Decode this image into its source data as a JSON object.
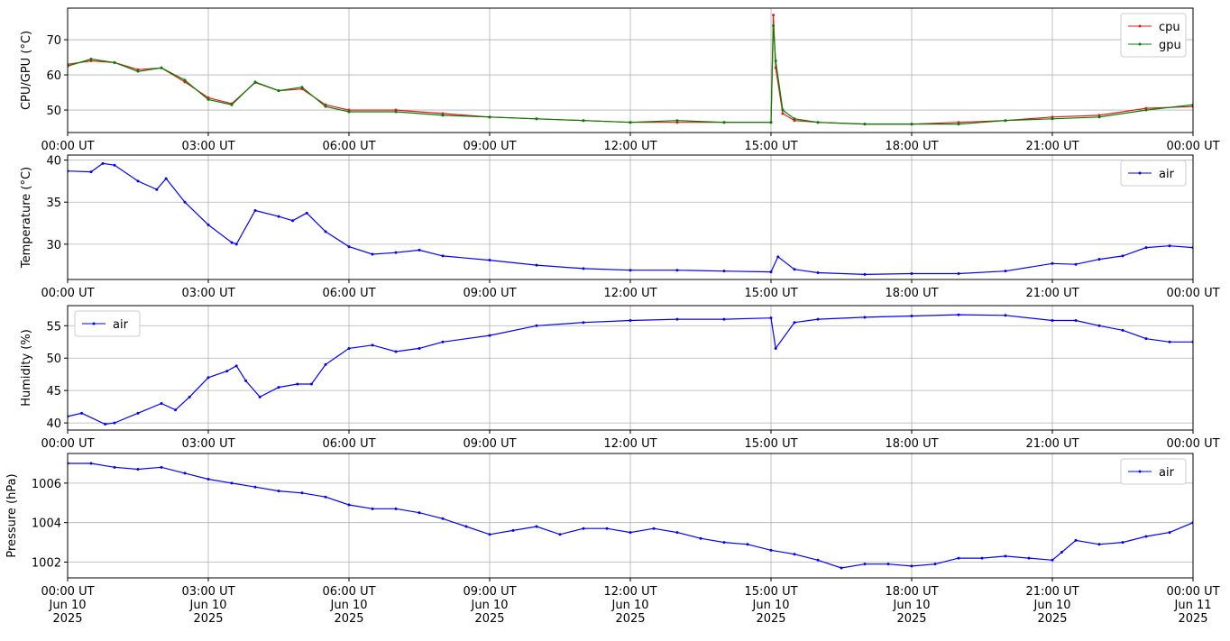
{
  "chart_data": [
    {
      "type": "line",
      "ylabel": "CPU/GPU (°C)",
      "grid": true,
      "legend": "upper right",
      "xlim": [
        0,
        24
      ],
      "ylim": [
        43.6,
        79
      ],
      "yticks": [
        50,
        60,
        70
      ],
      "xticks": [
        {
          "value": 0,
          "label": "00:00 UT"
        },
        {
          "value": 3,
          "label": "03:00 UT"
        },
        {
          "value": 6,
          "label": "06:00 UT"
        },
        {
          "value": 9,
          "label": "09:00 UT"
        },
        {
          "value": 12,
          "label": "12:00 UT"
        },
        {
          "value": 15,
          "label": "15:00 UT"
        },
        {
          "value": 18,
          "label": "18:00 UT"
        },
        {
          "value": 21,
          "label": "21:00 UT"
        },
        {
          "value": 24,
          "label": "00:00 UT"
        }
      ],
      "x": [
        0,
        0.5,
        1,
        1.5,
        2,
        2.5,
        3,
        3.5,
        4,
        4.5,
        5,
        5.5,
        6,
        7,
        8,
        9,
        10,
        11,
        12,
        13,
        14,
        15,
        15.05,
        15.1,
        15.25,
        15.5,
        16,
        17,
        18,
        19,
        20,
        21,
        22,
        23,
        24
      ],
      "series": [
        {
          "name": "cpu",
          "color": "#e31a1c",
          "values": [
            63,
            64,
            63.5,
            61.5,
            62,
            58,
            53.5,
            51.8,
            57.8,
            55.5,
            56,
            51.5,
            50,
            50,
            49,
            48,
            47.5,
            47,
            46.5,
            46.5,
            46.5,
            46.5,
            77,
            62,
            49,
            47,
            46.5,
            46,
            46,
            46.5,
            47,
            48,
            48.5,
            50.5,
            51
          ]
        },
        {
          "name": "gpu",
          "color": "#008000",
          "values": [
            62.5,
            64.5,
            63.5,
            61,
            62,
            58.5,
            53,
            51.5,
            58,
            55.5,
            56.5,
            51,
            49.5,
            49.5,
            48.5,
            48,
            47.5,
            47,
            46.5,
            47,
            46.5,
            46.5,
            74,
            64,
            50,
            47.5,
            46.5,
            46,
            46,
            46,
            47,
            47.5,
            48,
            50,
            51.5
          ]
        }
      ]
    },
    {
      "type": "line",
      "ylabel": "Temperature (°C)",
      "grid": true,
      "legend": "upper right",
      "xlim": [
        0,
        24
      ],
      "ylim": [
        25.8,
        40.6
      ],
      "yticks": [
        30,
        35,
        40
      ],
      "xticks": [
        {
          "value": 0,
          "label": "00:00 UT"
        },
        {
          "value": 3,
          "label": "03:00 UT"
        },
        {
          "value": 6,
          "label": "06:00 UT"
        },
        {
          "value": 9,
          "label": "09:00 UT"
        },
        {
          "value": 12,
          "label": "12:00 UT"
        },
        {
          "value": 15,
          "label": "15:00 UT"
        },
        {
          "value": 18,
          "label": "18:00 UT"
        },
        {
          "value": 21,
          "label": "21:00 UT"
        },
        {
          "value": 24,
          "label": "00:00 UT"
        }
      ],
      "x": [
        0,
        0.5,
        0.75,
        1,
        1.5,
        1.9,
        2.1,
        2.5,
        3,
        3.5,
        3.6,
        4,
        4.5,
        4.8,
        5.1,
        5.5,
        6,
        6.5,
        7,
        7.5,
        8,
        9,
        10,
        11,
        12,
        13,
        14,
        15,
        15.15,
        15.5,
        16,
        17,
        18,
        19,
        20,
        21,
        21.5,
        22,
        22.5,
        23,
        23.5,
        24
      ],
      "series": [
        {
          "name": "air",
          "color": "#0000ff",
          "values": [
            38.7,
            38.6,
            39.6,
            39.4,
            37.5,
            36.5,
            37.8,
            35,
            32.3,
            30.2,
            30,
            34,
            33.3,
            32.8,
            33.7,
            31.5,
            29.7,
            28.8,
            29,
            29.3,
            28.6,
            28.1,
            27.5,
            27.1,
            26.9,
            26.9,
            26.8,
            26.7,
            28.5,
            27,
            26.6,
            26.4,
            26.5,
            26.5,
            26.8,
            27.7,
            27.6,
            28.2,
            28.6,
            29.6,
            29.8,
            29.6
          ]
        }
      ]
    },
    {
      "type": "line",
      "ylabel": "Humidity (%)",
      "grid": true,
      "legend": "upper left",
      "xlim": [
        0,
        24
      ],
      "ylim": [
        38.9,
        58.1
      ],
      "yticks": [
        40,
        45,
        50,
        55
      ],
      "xticks": [
        {
          "value": 0,
          "label": "00:00 UT"
        },
        {
          "value": 3,
          "label": "03:00 UT"
        },
        {
          "value": 6,
          "label": "06:00 UT"
        },
        {
          "value": 9,
          "label": "09:00 UT"
        },
        {
          "value": 12,
          "label": "12:00 UT"
        },
        {
          "value": 15,
          "label": "15:00 UT"
        },
        {
          "value": 18,
          "label": "18:00 UT"
        },
        {
          "value": 21,
          "label": "21:00 UT"
        },
        {
          "value": 24,
          "label": "00:00 UT"
        }
      ],
      "x": [
        0,
        0.3,
        0.8,
        1,
        1.5,
        2,
        2.3,
        2.6,
        3,
        3.4,
        3.6,
        3.8,
        4.1,
        4.5,
        4.9,
        5.2,
        5.5,
        6,
        6.5,
        7,
        7.5,
        8,
        9,
        10,
        11,
        12,
        13,
        14,
        15,
        15.1,
        15.5,
        16,
        17,
        18,
        19,
        20,
        21,
        21.5,
        22,
        22.5,
        23,
        23.5,
        24
      ],
      "series": [
        {
          "name": "air",
          "color": "#0000ff",
          "values": [
            41,
            41.5,
            39.8,
            40,
            41.5,
            43,
            42,
            44,
            47,
            48,
            48.8,
            46.5,
            44,
            45.5,
            46,
            46,
            49,
            51.5,
            52,
            51,
            51.5,
            52.5,
            53.5,
            55,
            55.5,
            55.8,
            56,
            56,
            56.2,
            51.5,
            55.5,
            56,
            56.3,
            56.5,
            56.7,
            56.6,
            55.8,
            55.8,
            55,
            54.3,
            53,
            52.5,
            52.5
          ]
        }
      ]
    },
    {
      "type": "line",
      "ylabel": "Pressure (hPa)",
      "grid": true,
      "legend": "upper right",
      "xlim": [
        0,
        24
      ],
      "ylim": [
        1001.2,
        1007.5
      ],
      "yticks": [
        1002,
        1004,
        1006
      ],
      "xticks": [
        {
          "value": 0,
          "label": "00:00 UT\nJun 10\n2025"
        },
        {
          "value": 3,
          "label": "03:00 UT\nJun 10\n2025"
        },
        {
          "value": 6,
          "label": "06:00 UT\nJun 10\n2025"
        },
        {
          "value": 9,
          "label": "09:00 UT\nJun 10\n2025"
        },
        {
          "value": 12,
          "label": "12:00 UT\nJun 10\n2025"
        },
        {
          "value": 15,
          "label": "15:00 UT\nJun 10\n2025"
        },
        {
          "value": 18,
          "label": "18:00 UT\nJun 10\n2025"
        },
        {
          "value": 21,
          "label": "21:00 UT\nJun 10\n2025"
        },
        {
          "value": 24,
          "label": "00:00 UT\nJun 11\n2025"
        }
      ],
      "x": [
        0,
        0.5,
        1,
        1.5,
        2,
        2.5,
        3,
        3.5,
        4,
        4.5,
        5,
        5.5,
        6,
        6.5,
        7,
        7.5,
        8,
        8.5,
        9,
        9.5,
        10,
        10.5,
        11,
        11.5,
        12,
        12.5,
        13,
        13.5,
        14,
        14.5,
        15,
        15.5,
        16,
        16.5,
        17,
        17.5,
        18,
        18.5,
        19,
        19.5,
        20,
        20.5,
        21,
        21.2,
        21.5,
        22,
        22.5,
        23,
        23.5,
        24
      ],
      "series": [
        {
          "name": "air",
          "color": "#0000ff",
          "values": [
            1007,
            1007,
            1006.8,
            1006.7,
            1006.8,
            1006.5,
            1006.2,
            1006,
            1005.8,
            1005.6,
            1005.5,
            1005.3,
            1004.9,
            1004.7,
            1004.7,
            1004.5,
            1004.2,
            1003.8,
            1003.4,
            1003.6,
            1003.8,
            1003.4,
            1003.7,
            1003.7,
            1003.5,
            1003.7,
            1003.5,
            1003.2,
            1003,
            1002.9,
            1002.6,
            1002.4,
            1002.1,
            1001.7,
            1001.9,
            1001.9,
            1001.8,
            1001.9,
            1002.2,
            1002.2,
            1002.3,
            1002.2,
            1002.1,
            1002.5,
            1003.1,
            1002.9,
            1003,
            1003.3,
            1003.5,
            1004
          ]
        }
      ]
    }
  ]
}
